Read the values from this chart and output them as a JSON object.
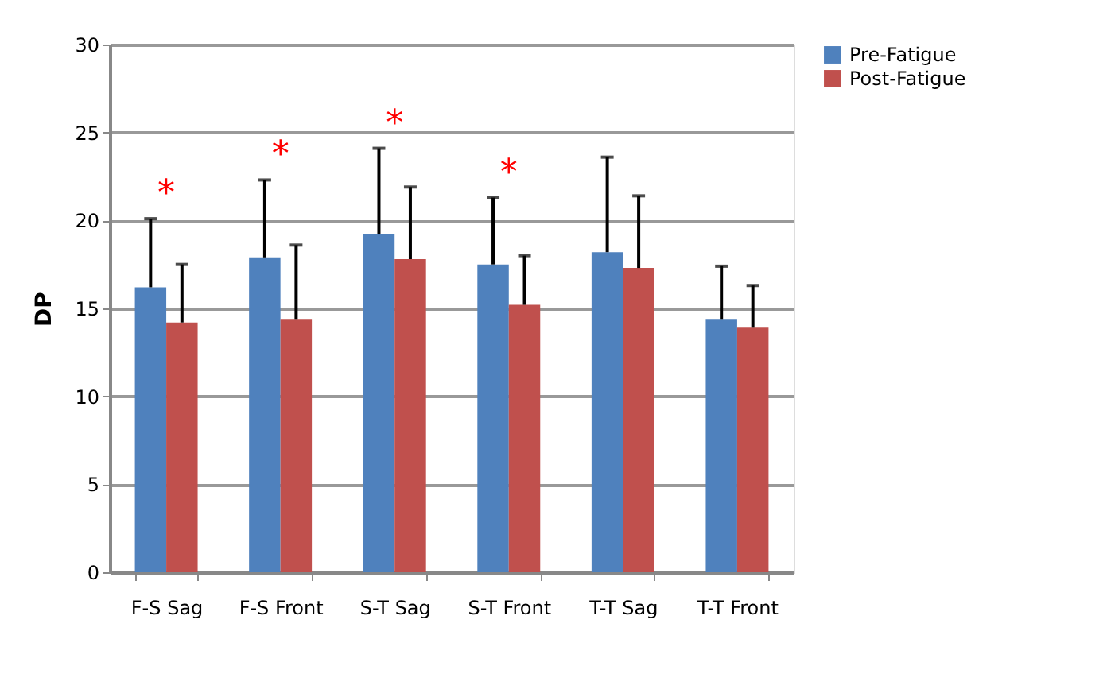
{
  "chart_data": {
    "type": "bar",
    "ylabel": "DP",
    "categories": [
      "F-S Sag",
      "F-S Front",
      "S-T Sag",
      "S-T Front",
      "T-T Sag",
      "T-T Front"
    ],
    "series": [
      {
        "name": "Pre-Fatigue",
        "color": "#4f81bd",
        "values": [
          16.2,
          17.9,
          19.2,
          17.5,
          18.2,
          14.4
        ],
        "errors": [
          [
            16.2,
            20.1
          ],
          [
            17.9,
            22.3
          ],
          [
            19.2,
            24.1
          ],
          [
            17.5,
            21.3
          ],
          [
            18.2,
            23.6
          ],
          [
            14.4,
            17.4
          ]
        ]
      },
      {
        "name": "Post-Fatigue",
        "color": "#c0504d",
        "values": [
          14.2,
          14.4,
          17.8,
          15.2,
          17.3,
          13.9
        ],
        "errors": [
          [
            14.2,
            17.5
          ],
          [
            14.4,
            18.6
          ],
          [
            17.8,
            21.9
          ],
          [
            15.2,
            18.0
          ],
          [
            17.3,
            21.4
          ],
          [
            13.9,
            16.3
          ]
        ]
      }
    ],
    "ylim": [
      0,
      30
    ],
    "yticks": [
      0,
      5,
      10,
      15,
      20,
      25,
      30
    ],
    "grid": "y",
    "legend": "right",
    "annotations": [
      "*",
      "*",
      "*",
      "*"
    ]
  }
}
